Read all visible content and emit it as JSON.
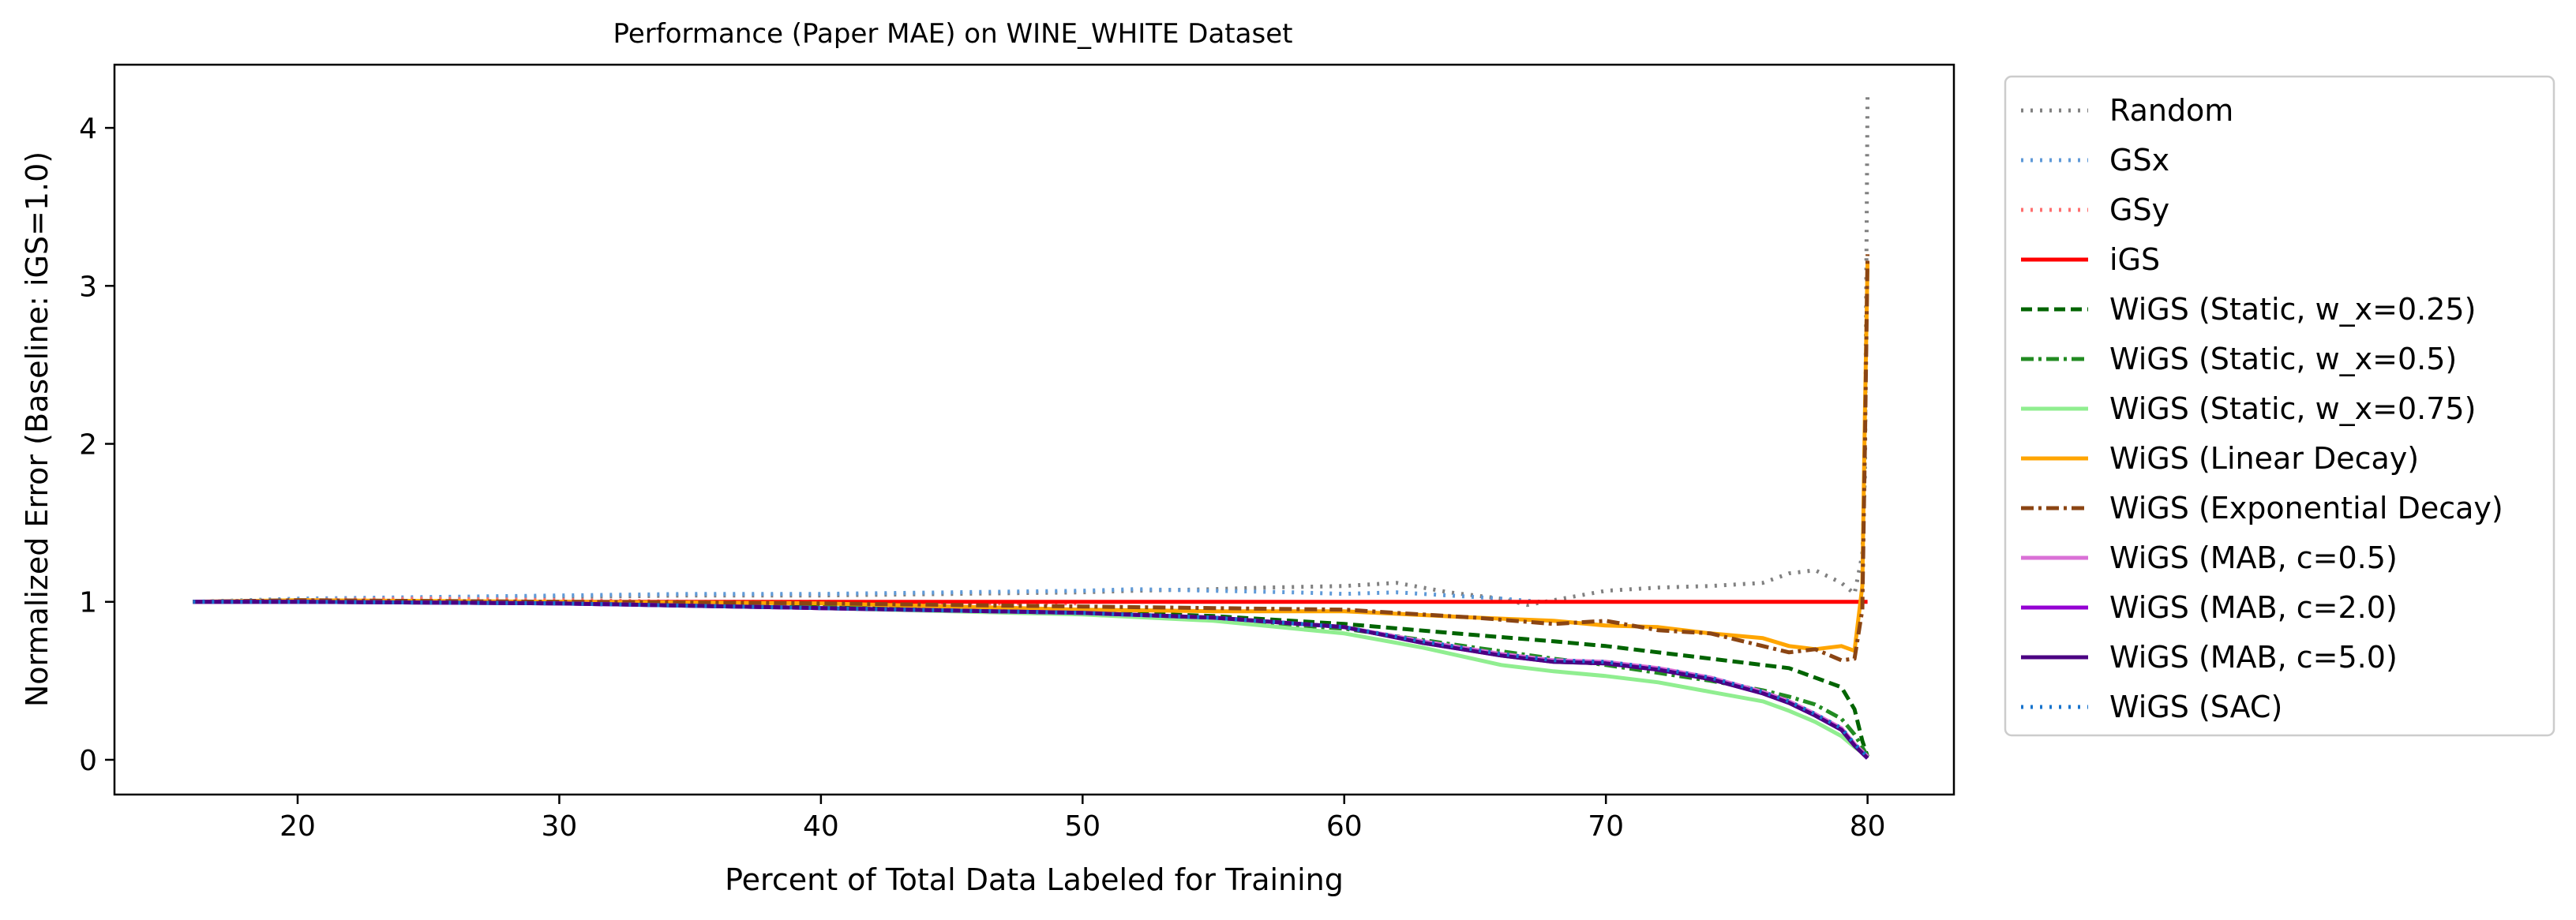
{
  "chart_data": {
    "type": "line",
    "title": "Performance (Paper MAE) on WINE_WHITE Dataset",
    "xlabel": "Percent of Total Data Labeled for Training",
    "ylabel": "Normalized Error (Baseline: iGS=1.0)",
    "xlim": [
      13,
      83.3
    ],
    "ylim": [
      -0.22,
      4.4
    ],
    "xticks": [
      20,
      30,
      40,
      50,
      60,
      70,
      80
    ],
    "yticks": [
      0,
      1,
      2,
      3,
      4
    ],
    "grid": false,
    "legend_position": "outside-right",
    "series": [
      {
        "name": "Random",
        "color": "#808080",
        "dash": "dotted",
        "x": [
          16,
          20,
          25,
          30,
          35,
          40,
          45,
          50,
          52,
          55,
          57,
          60,
          62,
          64,
          66,
          67,
          68,
          70,
          72,
          74,
          76,
          77,
          78,
          79,
          79.5,
          79.8,
          79.9,
          80
        ],
        "y": [
          1.0,
          1.01,
          1.02,
          1.03,
          1.04,
          1.04,
          1.05,
          1.06,
          1.07,
          1.08,
          1.09,
          1.1,
          1.12,
          1.06,
          1.02,
          0.98,
          1.01,
          1.07,
          1.09,
          1.1,
          1.12,
          1.18,
          1.2,
          1.12,
          1.05,
          1.3,
          1.8,
          4.2
        ]
      },
      {
        "name": "GSx",
        "color": "#5f9ad8",
        "dash": "dotted",
        "x": [
          16,
          20,
          25,
          30,
          35,
          40,
          45,
          50,
          52,
          55,
          58,
          60,
          62,
          64,
          66,
          67.5
        ],
        "y": [
          1.0,
          1.02,
          1.03,
          1.04,
          1.05,
          1.05,
          1.06,
          1.07,
          1.08,
          1.07,
          1.06,
          1.05,
          1.06,
          1.04,
          1.02,
          1.0
        ]
      },
      {
        "name": "GSy",
        "color": "#ff6f6f",
        "dash": "dotted",
        "x": [
          16,
          20,
          25,
          30,
          35,
          40,
          45,
          50
        ],
        "y": [
          1.0,
          1.01,
          1.02,
          1.01,
          1.0,
          1.0,
          0.99,
          0.99
        ]
      },
      {
        "name": "iGS",
        "color": "#ff0000",
        "dash": "solid",
        "x": [
          16,
          80
        ],
        "y": [
          1.0,
          1.0
        ]
      },
      {
        "name": "WiGS (Static, w_x=0.25)",
        "color": "#006400",
        "dash": "dashed",
        "x": [
          16,
          20,
          30,
          40,
          50,
          55,
          60,
          65,
          68,
          70,
          72,
          74,
          76,
          77,
          78,
          79,
          79.5,
          79.8,
          80
        ],
        "y": [
          1.0,
          1.0,
          0.99,
          0.97,
          0.94,
          0.91,
          0.86,
          0.79,
          0.75,
          0.72,
          0.68,
          0.64,
          0.6,
          0.58,
          0.52,
          0.46,
          0.32,
          0.12,
          0.02
        ]
      },
      {
        "name": "WiGS (Static, w_x=0.5)",
        "color": "#228b22",
        "dash": "dashdot",
        "x": [
          16,
          20,
          30,
          40,
          50,
          55,
          60,
          65,
          68,
          70,
          72,
          74,
          76,
          77,
          78,
          79,
          79.5,
          79.8,
          80
        ],
        "y": [
          1.0,
          1.0,
          0.99,
          0.97,
          0.93,
          0.89,
          0.83,
          0.71,
          0.64,
          0.6,
          0.55,
          0.5,
          0.44,
          0.4,
          0.35,
          0.26,
          0.16,
          0.08,
          0.02
        ]
      },
      {
        "name": "WiGS (Static, w_x=0.75)",
        "color": "#90ee90",
        "dash": "solid",
        "x": [
          16,
          20,
          30,
          40,
          50,
          55,
          60,
          63,
          66,
          68,
          70,
          72,
          74,
          76,
          77,
          78,
          79,
          79.5,
          80
        ],
        "y": [
          1.0,
          1.0,
          0.99,
          0.96,
          0.92,
          0.88,
          0.8,
          0.71,
          0.6,
          0.56,
          0.53,
          0.49,
          0.43,
          0.37,
          0.31,
          0.24,
          0.15,
          0.08,
          0.02
        ]
      },
      {
        "name": "WiGS (Linear Decay)",
        "color": "#ffa500",
        "dash": "solid",
        "x": [
          16,
          20,
          30,
          40,
          45,
          50,
          55,
          60,
          65,
          68,
          70,
          72,
          74,
          76,
          77,
          78,
          79,
          79.5,
          79.8,
          79.9,
          80
        ],
        "y": [
          1.0,
          1.01,
          1.0,
          0.99,
          0.97,
          0.95,
          0.94,
          0.94,
          0.9,
          0.88,
          0.85,
          0.84,
          0.8,
          0.77,
          0.72,
          0.7,
          0.72,
          0.69,
          1.1,
          2.2,
          3.15
        ]
      },
      {
        "name": "WiGS (Exponential Decay)",
        "color": "#8b4513",
        "dash": "dashdot",
        "x": [
          16,
          20,
          30,
          40,
          45,
          50,
          55,
          60,
          62,
          65,
          68,
          70,
          72,
          74,
          76,
          77,
          78,
          79,
          79.5,
          79.8,
          79.9,
          80
        ],
        "y": [
          1.0,
          1.01,
          1.0,
          0.99,
          0.98,
          0.97,
          0.96,
          0.95,
          0.93,
          0.9,
          0.86,
          0.88,
          0.82,
          0.8,
          0.72,
          0.68,
          0.7,
          0.63,
          0.64,
          0.95,
          2.0,
          3.2
        ]
      },
      {
        "name": "WiGS (MAB, c=0.5)",
        "color": "#da70d6",
        "dash": "solid",
        "x": [
          16,
          20,
          30,
          40,
          50,
          55,
          60,
          63,
          66,
          68,
          70,
          72,
          74,
          76,
          77,
          78,
          79,
          79.5,
          80
        ],
        "y": [
          1.0,
          1.0,
          0.99,
          0.96,
          0.93,
          0.9,
          0.84,
          0.75,
          0.67,
          0.63,
          0.62,
          0.58,
          0.52,
          0.43,
          0.37,
          0.29,
          0.2,
          0.1,
          0.02
        ]
      },
      {
        "name": "WiGS (MAB, c=2.0)",
        "color": "#9400d3",
        "dash": "solid",
        "x": [
          16,
          20,
          30,
          40,
          50,
          55,
          60,
          63,
          66,
          68,
          70,
          72,
          74,
          76,
          77,
          78,
          79,
          79.5,
          80
        ],
        "y": [
          1.0,
          1.0,
          0.99,
          0.96,
          0.93,
          0.9,
          0.84,
          0.74,
          0.66,
          0.62,
          0.61,
          0.57,
          0.51,
          0.42,
          0.36,
          0.28,
          0.19,
          0.09,
          0.01
        ]
      },
      {
        "name": "WiGS (MAB, c=5.0)",
        "color": "#4b0082",
        "dash": "solid",
        "x": [
          16,
          20,
          30,
          40,
          50,
          55,
          60,
          63,
          66,
          68,
          70,
          72,
          74,
          76,
          77,
          78,
          79,
          79.5,
          80
        ],
        "y": [
          1.0,
          1.0,
          0.99,
          0.96,
          0.93,
          0.9,
          0.84,
          0.74,
          0.66,
          0.62,
          0.61,
          0.57,
          0.51,
          0.42,
          0.36,
          0.28,
          0.19,
          0.09,
          0.01
        ]
      },
      {
        "name": "WiGS (SAC)",
        "color": "#1874cd",
        "dash": "dotted",
        "x": [
          16,
          20,
          30,
          40,
          50,
          55,
          60,
          63,
          66,
          68,
          70,
          72,
          74,
          76,
          77,
          78,
          79,
          79.5,
          80
        ],
        "y": [
          1.0,
          1.0,
          0.99,
          0.96,
          0.93,
          0.9,
          0.84,
          0.75,
          0.67,
          0.63,
          0.62,
          0.58,
          0.52,
          0.43,
          0.37,
          0.29,
          0.2,
          0.1,
          0.02
        ]
      }
    ]
  }
}
